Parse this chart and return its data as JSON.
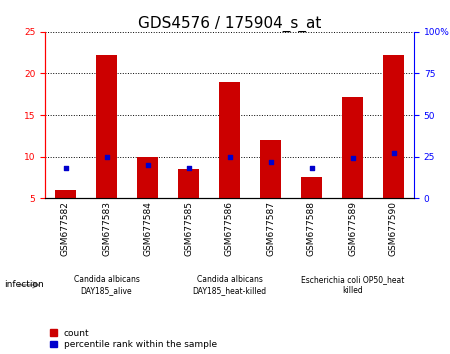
{
  "title": "GDS4576 / 175904_s_at",
  "samples": [
    "GSM677582",
    "GSM677583",
    "GSM677584",
    "GSM677585",
    "GSM677586",
    "GSM677587",
    "GSM677588",
    "GSM677589",
    "GSM677590"
  ],
  "count": [
    6.0,
    22.2,
    10.0,
    8.5,
    19.0,
    12.0,
    7.5,
    17.2,
    22.2
  ],
  "percentile": [
    18,
    25,
    20,
    18,
    25,
    22,
    18,
    24,
    27
  ],
  "ylim_left": [
    5,
    25
  ],
  "ylim_right": [
    0,
    100
  ],
  "yticks_left": [
    5,
    10,
    15,
    20,
    25
  ],
  "yticks_right": [
    0,
    25,
    50,
    75,
    100
  ],
  "ytick_labels_right": [
    "0",
    "25",
    "50",
    "75",
    "100%"
  ],
  "bar_color": "#cc0000",
  "dot_color": "#0000cc",
  "bar_bottom": 5,
  "groups": [
    {
      "label": "Candida albicans\nDAY185_alive",
      "start": 0,
      "end": 3,
      "color": "#99ee99"
    },
    {
      "label": "Candida albicans\nDAY185_heat-killed",
      "start": 3,
      "end": 6,
      "color": "#99ee99"
    },
    {
      "label": "Escherichia coli OP50_heat\nkilled",
      "start": 6,
      "end": 9,
      "color": "#44dd44"
    }
  ],
  "infection_label": "infection",
  "legend_count_label": "count",
  "legend_pct_label": "percentile rank within the sample",
  "title_fontsize": 11,
  "tick_fontsize": 6.5,
  "group_label_fontsize": 5.5,
  "bar_width": 0.5,
  "sample_cell_color": "#cccccc",
  "plot_facecolor": "#ffffff"
}
